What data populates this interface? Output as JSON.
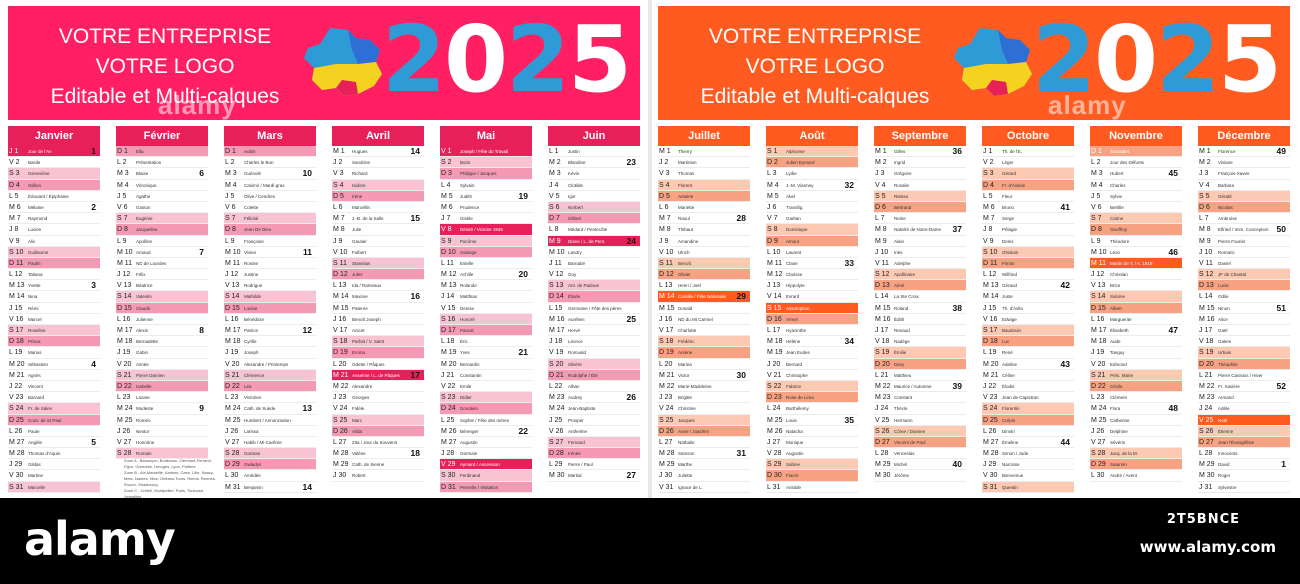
{
  "banner": {
    "line1": "VOTRE ENTREPRISE",
    "line2": "VOTRE LOGO",
    "line3": "Editable et Multi-calques",
    "year_digits": [
      "2",
      "0",
      "2",
      "5"
    ],
    "year_digit_colors": [
      "#2e9bd6",
      "#ffffff",
      "#2e9bd6",
      "#ffffff"
    ]
  },
  "watermark": {
    "text": "alamy"
  },
  "colors": {
    "left_accent": "#ff1f62",
    "right_accent": "#ff5a1f",
    "year_blue": "#2e9bd6"
  },
  "months": [
    {
      "name": "Janvier",
      "start": 3,
      "days": 31,
      "hol": [
        1
      ],
      "weeks": {
        "1": "1",
        "6": "2",
        "13": "3",
        "20": "4",
        "27": "5"
      },
      "names": {
        "1": "Jour de l'An",
        "2": "Basile",
        "3": "Geneviève",
        "4": "Odilon",
        "5": "Édouard / Épiphanie",
        "6": "Mélaine",
        "7": "Raymond",
        "8": "Lucien",
        "9": "Alix",
        "10": "Guillaume",
        "11": "Paulin",
        "12": "Tatiana",
        "13": "Yvette",
        "14": "Nina",
        "15": "Rémi",
        "16": "Marcel",
        "17": "Roseline",
        "18": "Prisca",
        "19": "Marius",
        "20": "Sébastien",
        "21": "Agnès",
        "22": "Vincent",
        "23": "Barnard",
        "24": "Fr. de Sales",
        "25": "Conv. de St Paul",
        "26": "Paule",
        "27": "Angèle",
        "28": "Thomas d'Aquin",
        "29": "Gildas",
        "30": "Martine",
        "31": "Marcelle"
      }
    },
    {
      "name": "Février",
      "start": 6,
      "days": 28,
      "hol": [],
      "weeks": {
        "3": "6",
        "10": "7",
        "17": "8",
        "24": "9"
      },
      "names": {
        "1": "Ella",
        "2": "Présentation",
        "3": "Blaise",
        "4": "Véronique",
        "5": "Agathe",
        "6": "Gaston",
        "7": "Eugénie",
        "8": "Jacqueline",
        "9": "Apolline",
        "10": "Arnaud",
        "11": "ND de Lourdes",
        "12": "Félix",
        "13": "Béatrice",
        "14": "Valentin",
        "15": "Claude",
        "16": "Julienne",
        "17": "Alexis",
        "18": "Bernadette",
        "19": "Gabin",
        "20": "Aimée",
        "21": "Pierre Damien",
        "22": "Isabelle",
        "23": "Lazare",
        "24": "Modeste",
        "25": "Roméo",
        "26": "Nestor",
        "27": "Honorine",
        "28": "Romain"
      }
    },
    {
      "name": "Mars",
      "start": 6,
      "days": 31,
      "hol": [],
      "weeks": {
        "3": "10",
        "10": "11",
        "17": "12",
        "24": "13",
        "31": "14"
      },
      "names": {
        "1": "Aubin",
        "2": "Charles le Bon",
        "3": "Guénolé",
        "4": "Casimir / Mardi-gras",
        "5": "Olive / Cendres",
        "6": "Colette",
        "7": "Félicité",
        "8": "Jean De Dieu",
        "9": "Françoise",
        "10": "Vivien",
        "11": "Rosine",
        "12": "Justine",
        "13": "Rodrigue",
        "14": "Mathilde",
        "15": "Louise",
        "16": "Bénédicte",
        "17": "Patrice",
        "18": "Cyrille",
        "19": "Joseph",
        "20": "Alexandre / Printemps",
        "21": "Clémence",
        "22": "Léa",
        "23": "Victorien",
        "24": "Cath. de Suède",
        "25": "Humbert / Annonciation",
        "26": "Larissa",
        "27": "Habib / Mi-Carême",
        "28": "Gontran",
        "29": "Gwladys",
        "30": "Amédée",
        "31": "Benjamin"
      }
    },
    {
      "name": "Avril",
      "start": 2,
      "days": 30,
      "hol": [
        21
      ],
      "weeks": {
        "1": "14",
        "7": "15",
        "14": "16",
        "21": "17",
        "28": "18"
      },
      "names": {
        "1": "Hugues",
        "2": "Sandrine",
        "3": "Richard",
        "4": "Isidore",
        "5": "Irène",
        "6": "Marcellin",
        "7": "J.-B. de la Salle",
        "8": "Julie",
        "9": "Gautier",
        "10": "Fulbert",
        "11": "Stanislas",
        "12": "Jules",
        "13": "Ida / Rameaux",
        "14": "Maxime",
        "15": "Paterne",
        "16": "Benoît Joseph",
        "17": "Anicet",
        "18": "Parfait / V. Saint",
        "19": "Emma",
        "20": "Odette / Pâques",
        "21": "Anselme / L. de Pâques",
        "22": "Alexandre",
        "23": "Georges",
        "24": "Fidèle",
        "25": "Marc",
        "26": "Alida",
        "27": "Zita / Jour du Souvenir",
        "28": "Valérie",
        "29": "Cath. de Sienne",
        "30": "Robert"
      }
    },
    {
      "name": "Mai",
      "start": 4,
      "days": 31,
      "hol": [
        1,
        8,
        29
      ],
      "weeks": {
        "5": "19",
        "12": "20",
        "19": "21",
        "26": "22"
      },
      "names": {
        "1": "Joseph / Fête du Travail",
        "2": "Boris",
        "3": "Philippe / Jacques",
        "4": "Sylvain",
        "5": "Judith",
        "6": "Prudence",
        "7": "Gisèle",
        "8": "Désiré / Victoire 1945",
        "9": "Pacôme",
        "10": "Solange",
        "11": "Estelle",
        "12": "Achille",
        "13": "Rolande",
        "14": "Matthias",
        "15": "Denise",
        "16": "Honoré",
        "17": "Pascal",
        "18": "Éric",
        "19": "Yves",
        "20": "Bernardin",
        "21": "Constantin",
        "22": "Emile",
        "23": "Didier",
        "24": "Donatien",
        "25": "Sophie / Fête des mères",
        "26": "Bérenger",
        "27": "Augustin",
        "28": "Germain",
        "29": "Aymard / Ascension",
        "30": "Ferdinand",
        "31": "Pernelle / Visitation"
      }
    },
    {
      "name": "Juin",
      "start": 0,
      "days": 30,
      "hol": [
        9
      ],
      "weeks": {
        "2": "23",
        "9": "24",
        "16": "25",
        "23": "26",
        "30": "27"
      },
      "names": {
        "1": "Justin",
        "2": "Blandine",
        "3": "Kévin",
        "4": "Clotilde",
        "5": "Igor",
        "6": "Norbert",
        "7": "Gilbert",
        "8": "Médard / Pentecôte",
        "9": "Diane / L. de Pent.",
        "10": "Landry",
        "11": "Barnabé",
        "12": "Guy",
        "13": "Ant. de Padoue",
        "14": "Élisée",
        "15": "Germaine / Fête des pères",
        "16": "Aurélien",
        "17": "Hervé",
        "18": "Léonce",
        "19": "Romuald",
        "20": "Silvère",
        "21": "Rodolphe / Été",
        "22": "Alban",
        "23": "Audrey",
        "24": "Jean-Baptiste",
        "25": "Prosper",
        "26": "Anthelme",
        "27": "Fernand",
        "28": "Irénée",
        "29": "Pierre / Paul",
        "30": "Martial"
      }
    },
    {
      "name": "Juillet",
      "start": 2,
      "days": 31,
      "hol": [
        14
      ],
      "weeks": {
        "7": "28",
        "14": "29",
        "21": "30",
        "28": "31"
      },
      "names": {
        "1": "Thierry",
        "2": "Martinien",
        "3": "Thomas",
        "4": "Florent",
        "5": "Antoine",
        "6": "Mariette",
        "7": "Raoul",
        "8": "Thibaut",
        "9": "Amandine",
        "10": "Ulrich",
        "11": "Benoît",
        "12": "Olivier",
        "13": "Henri / Joël",
        "14": "Camille / Fête Nationale",
        "15": "Donald",
        "16": "ND du Mt Carmel",
        "17": "Charlotte",
        "18": "Frédéric",
        "19": "Arsène",
        "20": "Marina",
        "21": "Victor",
        "22": "Marie-Madeleine",
        "23": "Brigitte",
        "24": "Christine",
        "25": "Jacques",
        "26": "Anne / Joachim",
        "27": "Nathalie",
        "28": "Samson",
        "29": "Marthe",
        "30": "Juliette",
        "31": "Ignace de L."
      }
    },
    {
      "name": "Août",
      "start": 5,
      "days": 31,
      "hol": [
        15
      ],
      "weeks": {
        "4": "32",
        "11": "33",
        "18": "34",
        "25": "35"
      },
      "names": {
        "1": "Alphonse",
        "2": "Julien Eymard",
        "3": "Lydie",
        "4": "J.-M. Vianney",
        "5": "Abel",
        "6": "Transfig.",
        "7": "Gaétan",
        "8": "Dominique",
        "9": "Amour",
        "10": "Laurent",
        "11": "Claire",
        "12": "Clarisse",
        "13": "Hippolyte",
        "14": "Evrard",
        "15": "Assomption",
        "16": "Armel",
        "17": "Hyacinthe",
        "18": "Hélène",
        "19": "Jean Eudes",
        "20": "Bernard",
        "21": "Christophe",
        "22": "Fabrice",
        "23": "Rose de Lima",
        "24": "Barthélemy",
        "25": "Louis",
        "26": "Natacha",
        "27": "Monique",
        "28": "Augustin",
        "29": "Sabine",
        "30": "Fiacre",
        "31": "Aristide"
      }
    },
    {
      "name": "Septembre",
      "start": 1,
      "days": 30,
      "hol": [],
      "weeks": {
        "1": "36",
        "8": "37",
        "15": "38",
        "22": "39",
        "29": "40"
      },
      "names": {
        "1": "Gilles",
        "2": "Ingrid",
        "3": "Grégoire",
        "4": "Rosalie",
        "5": "Raïssa",
        "6": "Bertrand",
        "7": "Reine",
        "8": "Nativité de Notre-Dame",
        "9": "Alain",
        "10": "Inès",
        "11": "Adelphe",
        "12": "Apollinaire",
        "13": "Aimé",
        "14": "La Ste Croix",
        "15": "Roland",
        "16": "Édith",
        "17": "Renaud",
        "18": "Nadège",
        "19": "Émilie",
        "20": "Davy",
        "21": "Matthieu",
        "22": "Maurice / Automne",
        "23": "Constant",
        "24": "Thècle",
        "25": "Hermann",
        "26": "Côme / Damien",
        "27": "Vincent de Paul",
        "28": "Venceslas",
        "29": "Michel",
        "30": "Jérôme"
      }
    },
    {
      "name": "Octobre",
      "start": 3,
      "days": 31,
      "hol": [],
      "weeks": {
        "6": "41",
        "13": "42",
        "20": "43",
        "27": "44"
      },
      "names": {
        "1": "Th. de l'E.",
        "2": "Léger",
        "3": "Gérard",
        "4": "Fr. d'Assise",
        "5": "Fleur",
        "6": "Bruno",
        "7": "Serge",
        "8": "Pélagie",
        "9": "Denis",
        "10": "Ghislain",
        "11": "Firmin",
        "12": "Wilfried",
        "13": "Géraud",
        "14": "Juste",
        "15": "Th. d'Avila",
        "16": "Edwige",
        "17": "Baudouin",
        "18": "Luc",
        "19": "René",
        "20": "Adeline",
        "21": "Céline",
        "22": "Élodie",
        "23": "Jean de Capistran",
        "24": "Florentin",
        "25": "Crépin",
        "26": "Dimitri",
        "27": "Émeline",
        "28": "Simon / Jude",
        "29": "Narcisse",
        "30": "Bienvenue",
        "31": "Quentin"
      }
    },
    {
      "name": "Novembre",
      "start": 6,
      "days": 30,
      "hol": [
        1,
        11
      ],
      "weeks": {
        "3": "45",
        "10": "46",
        "17": "47",
        "24": "48"
      },
      "names": {
        "1": "Toussaint",
        "2": "Jour des Défunts",
        "3": "Hubert",
        "4": "Charles",
        "5": "Sylvie",
        "6": "Bertille",
        "7": "Carine",
        "8": "Geoffroy",
        "9": "Théodore",
        "10": "Léon",
        "11": "Martin de T. / A. 1918",
        "12": "Christian",
        "13": "Brice",
        "14": "Sidoine",
        "15": "Albert",
        "16": "Marguerite",
        "17": "Élisabeth",
        "18": "Aude",
        "19": "Tanguy",
        "20": "Edmond",
        "21": "Prés. Marie",
        "22": "Cécile",
        "23": "Clément",
        "24": "Flora",
        "25": "Catherine",
        "26": "Delphine",
        "27": "Sévérin",
        "28": "Jacq. de la M.",
        "29": "Saturnin",
        "30": "André / Avent"
      }
    },
    {
      "name": "Décembre",
      "start": 1,
      "days": 31,
      "hol": [
        25
      ],
      "weeks": {
        "1": "49",
        "8": "50",
        "15": "51",
        "22": "52",
        "29": "1"
      },
      "names": {
        "1": "Florence",
        "2": "Viviane",
        "3": "François-Xavier",
        "4": "Barbara",
        "5": "Gérald",
        "6": "Nicolas",
        "7": "Ambroise",
        "8": "Elfried / Imm. Conception",
        "9": "Pierre Fourier",
        "10": "Romaric",
        "11": "Daniel",
        "12": "JF de Chantal",
        "13": "Lucie",
        "14": "Odile",
        "15": "Ninon",
        "16": "Alice",
        "17": "Gaël",
        "18": "Gatien",
        "19": "Urbain",
        "20": "Théophile",
        "21": "Pierre Canisius / Hiver",
        "22": "Fr. Xavière",
        "23": "Armand",
        "24": "Adèle",
        "25": "Noël",
        "26": "Étienne",
        "27": "Jean l'Évangéliste",
        "28": "Innocents",
        "29": "David",
        "30": "Roger",
        "31": "Sylvestre"
      }
    }
  ],
  "weekday_letters": [
    "L",
    "M",
    "M",
    "J",
    "V",
    "S",
    "D"
  ],
  "legend": [
    "Zone A : Besançon, Bordeaux, Clermont-Ferrand, Dijon, Grenoble, Limoges, Lyon, Poitiers",
    "Zone B : Aix-Marseille, Amiens, Caen, Lille, Nancy-Metz, Nantes, Nice, Orléans-Tours, Reims, Rennes, Rouen, Strasbourg",
    "Zone C : Créteil, Montpellier, Paris, Toulouse, Versailles"
  ],
  "footer": {
    "logo": "alamy",
    "image_id": "2T5BNCE",
    "site": "www.alamy.com"
  }
}
